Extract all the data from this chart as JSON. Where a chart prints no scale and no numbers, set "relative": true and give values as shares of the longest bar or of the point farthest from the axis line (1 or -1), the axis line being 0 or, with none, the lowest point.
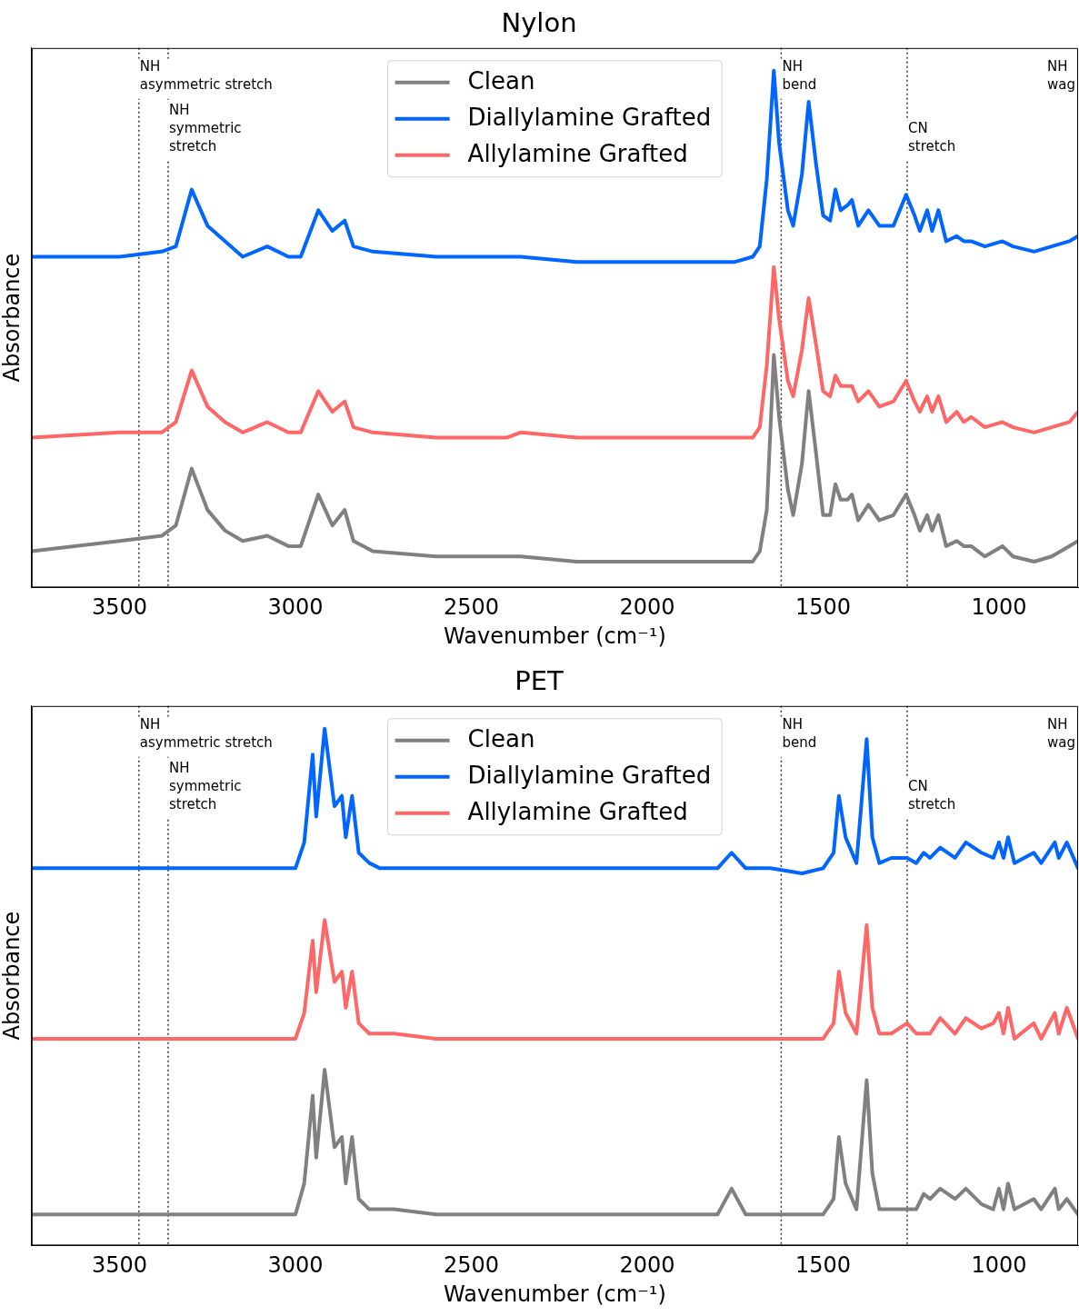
{
  "chart_data": [
    {
      "type": "line",
      "title": "Nylon",
      "xlabel": "Wavenumber (cm⁻¹)",
      "ylabel": "Absorbance",
      "relative": true,
      "xlim": [
        3750,
        775
      ],
      "xticks": [
        3500,
        3000,
        2500,
        2000,
        1500,
        1000
      ],
      "grid": false,
      "legend": "top",
      "line_style": "solid",
      "marker": "none",
      "ref_lines": [
        {
          "axis": "x",
          "value": 3445,
          "label": "NH\nasymmetric stretch",
          "color": "#333333",
          "line_style": "dotted"
        },
        {
          "axis": "x",
          "value": 3362,
          "label": "NH\nsymmetric\nstretch",
          "color": "#333333",
          "line_style": "dotted"
        },
        {
          "axis": "x",
          "value": 1619,
          "label": "NH\nbend",
          "color": "#333333",
          "line_style": "dotted"
        },
        {
          "axis": "x",
          "value": 1261,
          "label": "CN\nstretch",
          "color": "#333333",
          "line_style": "dotted"
        }
      ],
      "annotations": [
        "NH\nwag"
      ],
      "x": [
        3750,
        3500,
        3380,
        3340,
        3295,
        3250,
        3200,
        3150,
        3080,
        3020,
        2985,
        2935,
        2895,
        2860,
        2835,
        2780,
        2600,
        2400,
        2360,
        2200,
        2000,
        1750,
        1700,
        1680,
        1660,
        1640,
        1625,
        1600,
        1585,
        1560,
        1541,
        1520,
        1500,
        1480,
        1465,
        1450,
        1430,
        1418,
        1400,
        1371,
        1340,
        1300,
        1264,
        1240,
        1225,
        1204,
        1190,
        1172,
        1150,
        1120,
        1100,
        1079,
        1040,
        990,
        960,
        900,
        850,
        800,
        775
      ],
      "series": [
        {
          "name": "Clean",
          "color": "#808080",
          "values": [
            0.07,
            0.09,
            0.1,
            0.12,
            0.23,
            0.15,
            0.11,
            0.09,
            0.1,
            0.08,
            0.08,
            0.18,
            0.12,
            0.15,
            0.09,
            0.07,
            0.06,
            0.06,
            0.06,
            0.05,
            0.05,
            0.05,
            0.05,
            0.07,
            0.15,
            0.45,
            0.33,
            0.19,
            0.14,
            0.24,
            0.38,
            0.26,
            0.14,
            0.14,
            0.2,
            0.17,
            0.17,
            0.18,
            0.13,
            0.16,
            0.13,
            0.14,
            0.18,
            0.14,
            0.11,
            0.14,
            0.11,
            0.14,
            0.08,
            0.09,
            0.08,
            0.08,
            0.06,
            0.08,
            0.06,
            0.05,
            0.06,
            0.08,
            0.09
          ]
        },
        {
          "name": "Diallylamine Grafted",
          "color": "#0066ff",
          "values": [
            0.64,
            0.64,
            0.65,
            0.66,
            0.77,
            0.7,
            0.67,
            0.64,
            0.66,
            0.64,
            0.64,
            0.73,
            0.69,
            0.71,
            0.66,
            0.65,
            0.64,
            0.64,
            0.64,
            0.63,
            0.63,
            0.63,
            0.64,
            0.66,
            0.79,
            1.0,
            0.86,
            0.73,
            0.7,
            0.8,
            0.94,
            0.82,
            0.72,
            0.71,
            0.77,
            0.73,
            0.74,
            0.75,
            0.7,
            0.73,
            0.7,
            0.7,
            0.76,
            0.72,
            0.69,
            0.73,
            0.69,
            0.73,
            0.67,
            0.68,
            0.67,
            0.67,
            0.66,
            0.67,
            0.66,
            0.65,
            0.66,
            0.67,
            0.68
          ]
        },
        {
          "name": "Allylamine Grafted",
          "color": "#ff6666",
          "values": [
            0.29,
            0.3,
            0.3,
            0.32,
            0.42,
            0.35,
            0.32,
            0.3,
            0.32,
            0.3,
            0.3,
            0.38,
            0.34,
            0.36,
            0.31,
            0.3,
            0.29,
            0.29,
            0.3,
            0.29,
            0.29,
            0.29,
            0.29,
            0.31,
            0.43,
            0.62,
            0.52,
            0.4,
            0.37,
            0.46,
            0.56,
            0.47,
            0.38,
            0.37,
            0.41,
            0.39,
            0.39,
            0.39,
            0.36,
            0.38,
            0.35,
            0.36,
            0.4,
            0.36,
            0.34,
            0.37,
            0.34,
            0.37,
            0.32,
            0.34,
            0.32,
            0.33,
            0.31,
            0.32,
            0.31,
            0.3,
            0.31,
            0.32,
            0.34
          ]
        }
      ]
    },
    {
      "type": "line",
      "title": "PET",
      "xlabel": "Wavenumber (cm⁻¹)",
      "ylabel": "Absorbance",
      "relative": true,
      "xlim": [
        3750,
        775
      ],
      "xticks": [
        3500,
        3000,
        2500,
        2000,
        1500,
        1000
      ],
      "grid": false,
      "legend": "top",
      "line_style": "solid",
      "marker": "none",
      "ref_lines": [
        {
          "axis": "x",
          "value": 3445,
          "label": "NH\nasymmetric stretch",
          "color": "#333333",
          "line_style": "dotted"
        },
        {
          "axis": "x",
          "value": 3362,
          "label": "NH\nsymmetric\nstretch",
          "color": "#333333",
          "line_style": "dotted"
        },
        {
          "axis": "x",
          "value": 1619,
          "label": "NH\nbend",
          "color": "#333333",
          "line_style": "dotted"
        },
        {
          "axis": "x",
          "value": 1261,
          "label": "CN\nstretch",
          "color": "#333333",
          "line_style": "dotted"
        }
      ],
      "annotations": [
        "NH\nwag"
      ],
      "x": [
        3750,
        3600,
        3400,
        3200,
        3000,
        2975,
        2951,
        2941,
        2917,
        2889,
        2868,
        2857,
        2839,
        2820,
        2790,
        2760,
        2720,
        2600,
        2400,
        2200,
        2000,
        1800,
        1760,
        1720,
        1650,
        1560,
        1500,
        1470,
        1455,
        1436,
        1405,
        1376,
        1360,
        1340,
        1306,
        1261,
        1235,
        1214,
        1196,
        1167,
        1125,
        1094,
        1050,
        1016,
        1000,
        987,
        974,
        956,
        901,
        880,
        841,
        830,
        807,
        775
      ],
      "series": [
        {
          "name": "Clean",
          "color": "#808080",
          "values": [
            0.06,
            0.06,
            0.06,
            0.06,
            0.06,
            0.12,
            0.29,
            0.17,
            0.34,
            0.19,
            0.21,
            0.12,
            0.21,
            0.09,
            0.07,
            0.07,
            0.07,
            0.06,
            0.06,
            0.06,
            0.06,
            0.06,
            0.11,
            0.06,
            0.06,
            0.06,
            0.06,
            0.09,
            0.21,
            0.12,
            0.07,
            0.32,
            0.14,
            0.07,
            0.07,
            0.07,
            0.07,
            0.1,
            0.09,
            0.11,
            0.09,
            0.11,
            0.08,
            0.07,
            0.11,
            0.07,
            0.12,
            0.07,
            0.09,
            0.07,
            0.11,
            0.07,
            0.09,
            0.06
          ]
        },
        {
          "name": "Diallylamine Grafted",
          "color": "#0066ff",
          "values": [
            0.73,
            0.73,
            0.73,
            0.73,
            0.73,
            0.78,
            0.95,
            0.83,
            1.0,
            0.85,
            0.87,
            0.79,
            0.87,
            0.76,
            0.74,
            0.73,
            0.73,
            0.73,
            0.73,
            0.73,
            0.73,
            0.73,
            0.76,
            0.73,
            0.73,
            0.72,
            0.73,
            0.76,
            0.87,
            0.79,
            0.74,
            0.98,
            0.79,
            0.74,
            0.75,
            0.75,
            0.74,
            0.76,
            0.75,
            0.77,
            0.75,
            0.78,
            0.76,
            0.75,
            0.78,
            0.75,
            0.79,
            0.74,
            0.76,
            0.74,
            0.78,
            0.75,
            0.78,
            0.73
          ]
        },
        {
          "name": "Allylamine Grafted",
          "color": "#ff6666",
          "values": [
            0.4,
            0.4,
            0.4,
            0.4,
            0.4,
            0.45,
            0.59,
            0.49,
            0.63,
            0.51,
            0.53,
            0.46,
            0.53,
            0.43,
            0.41,
            0.41,
            0.41,
            0.4,
            0.4,
            0.4,
            0.4,
            0.4,
            0.4,
            0.4,
            0.4,
            0.4,
            0.4,
            0.43,
            0.53,
            0.45,
            0.41,
            0.62,
            0.46,
            0.41,
            0.41,
            0.43,
            0.41,
            0.41,
            0.41,
            0.44,
            0.41,
            0.44,
            0.42,
            0.43,
            0.45,
            0.41,
            0.46,
            0.4,
            0.43,
            0.4,
            0.45,
            0.41,
            0.46,
            0.4
          ]
        }
      ]
    }
  ]
}
